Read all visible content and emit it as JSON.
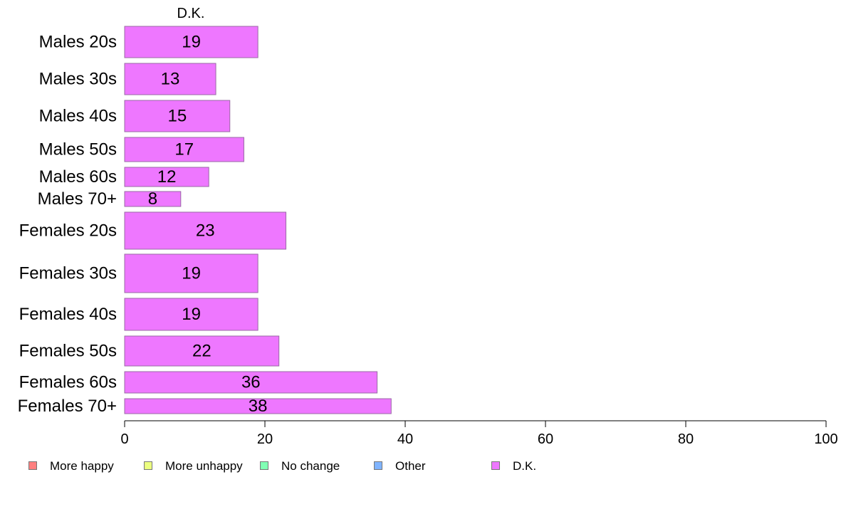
{
  "chart_data": {
    "type": "bar",
    "orientation": "horizontal",
    "title": "D.K.",
    "categories": [
      "Males 20s",
      "Males 30s",
      "Males 40s",
      "Males 50s",
      "Males 60s",
      "Males 70+",
      "Females 20s",
      "Females 30s",
      "Females 40s",
      "Females 50s",
      "Females 60s",
      "Females 70+"
    ],
    "series": [
      {
        "name": "D.K.",
        "values": [
          19,
          13,
          15,
          17,
          12,
          8,
          23,
          19,
          19,
          22,
          36,
          38
        ],
        "color": "#ee77ff"
      }
    ],
    "xlim": [
      0,
      100
    ],
    "xticks": [
      0,
      20,
      40,
      60,
      80,
      100
    ],
    "grid": false,
    "bar_stroke": "#9a6aa6",
    "legend_position": "bottom",
    "legend": [
      {
        "label": "More happy",
        "color": "#ff8080"
      },
      {
        "label": "More unhappy",
        "color": "#ecff80"
      },
      {
        "label": "No change",
        "color": "#80ffb4"
      },
      {
        "label": "Other",
        "color": "#80b4ff"
      },
      {
        "label": "D.K.",
        "color": "#ee77ff"
      }
    ]
  }
}
